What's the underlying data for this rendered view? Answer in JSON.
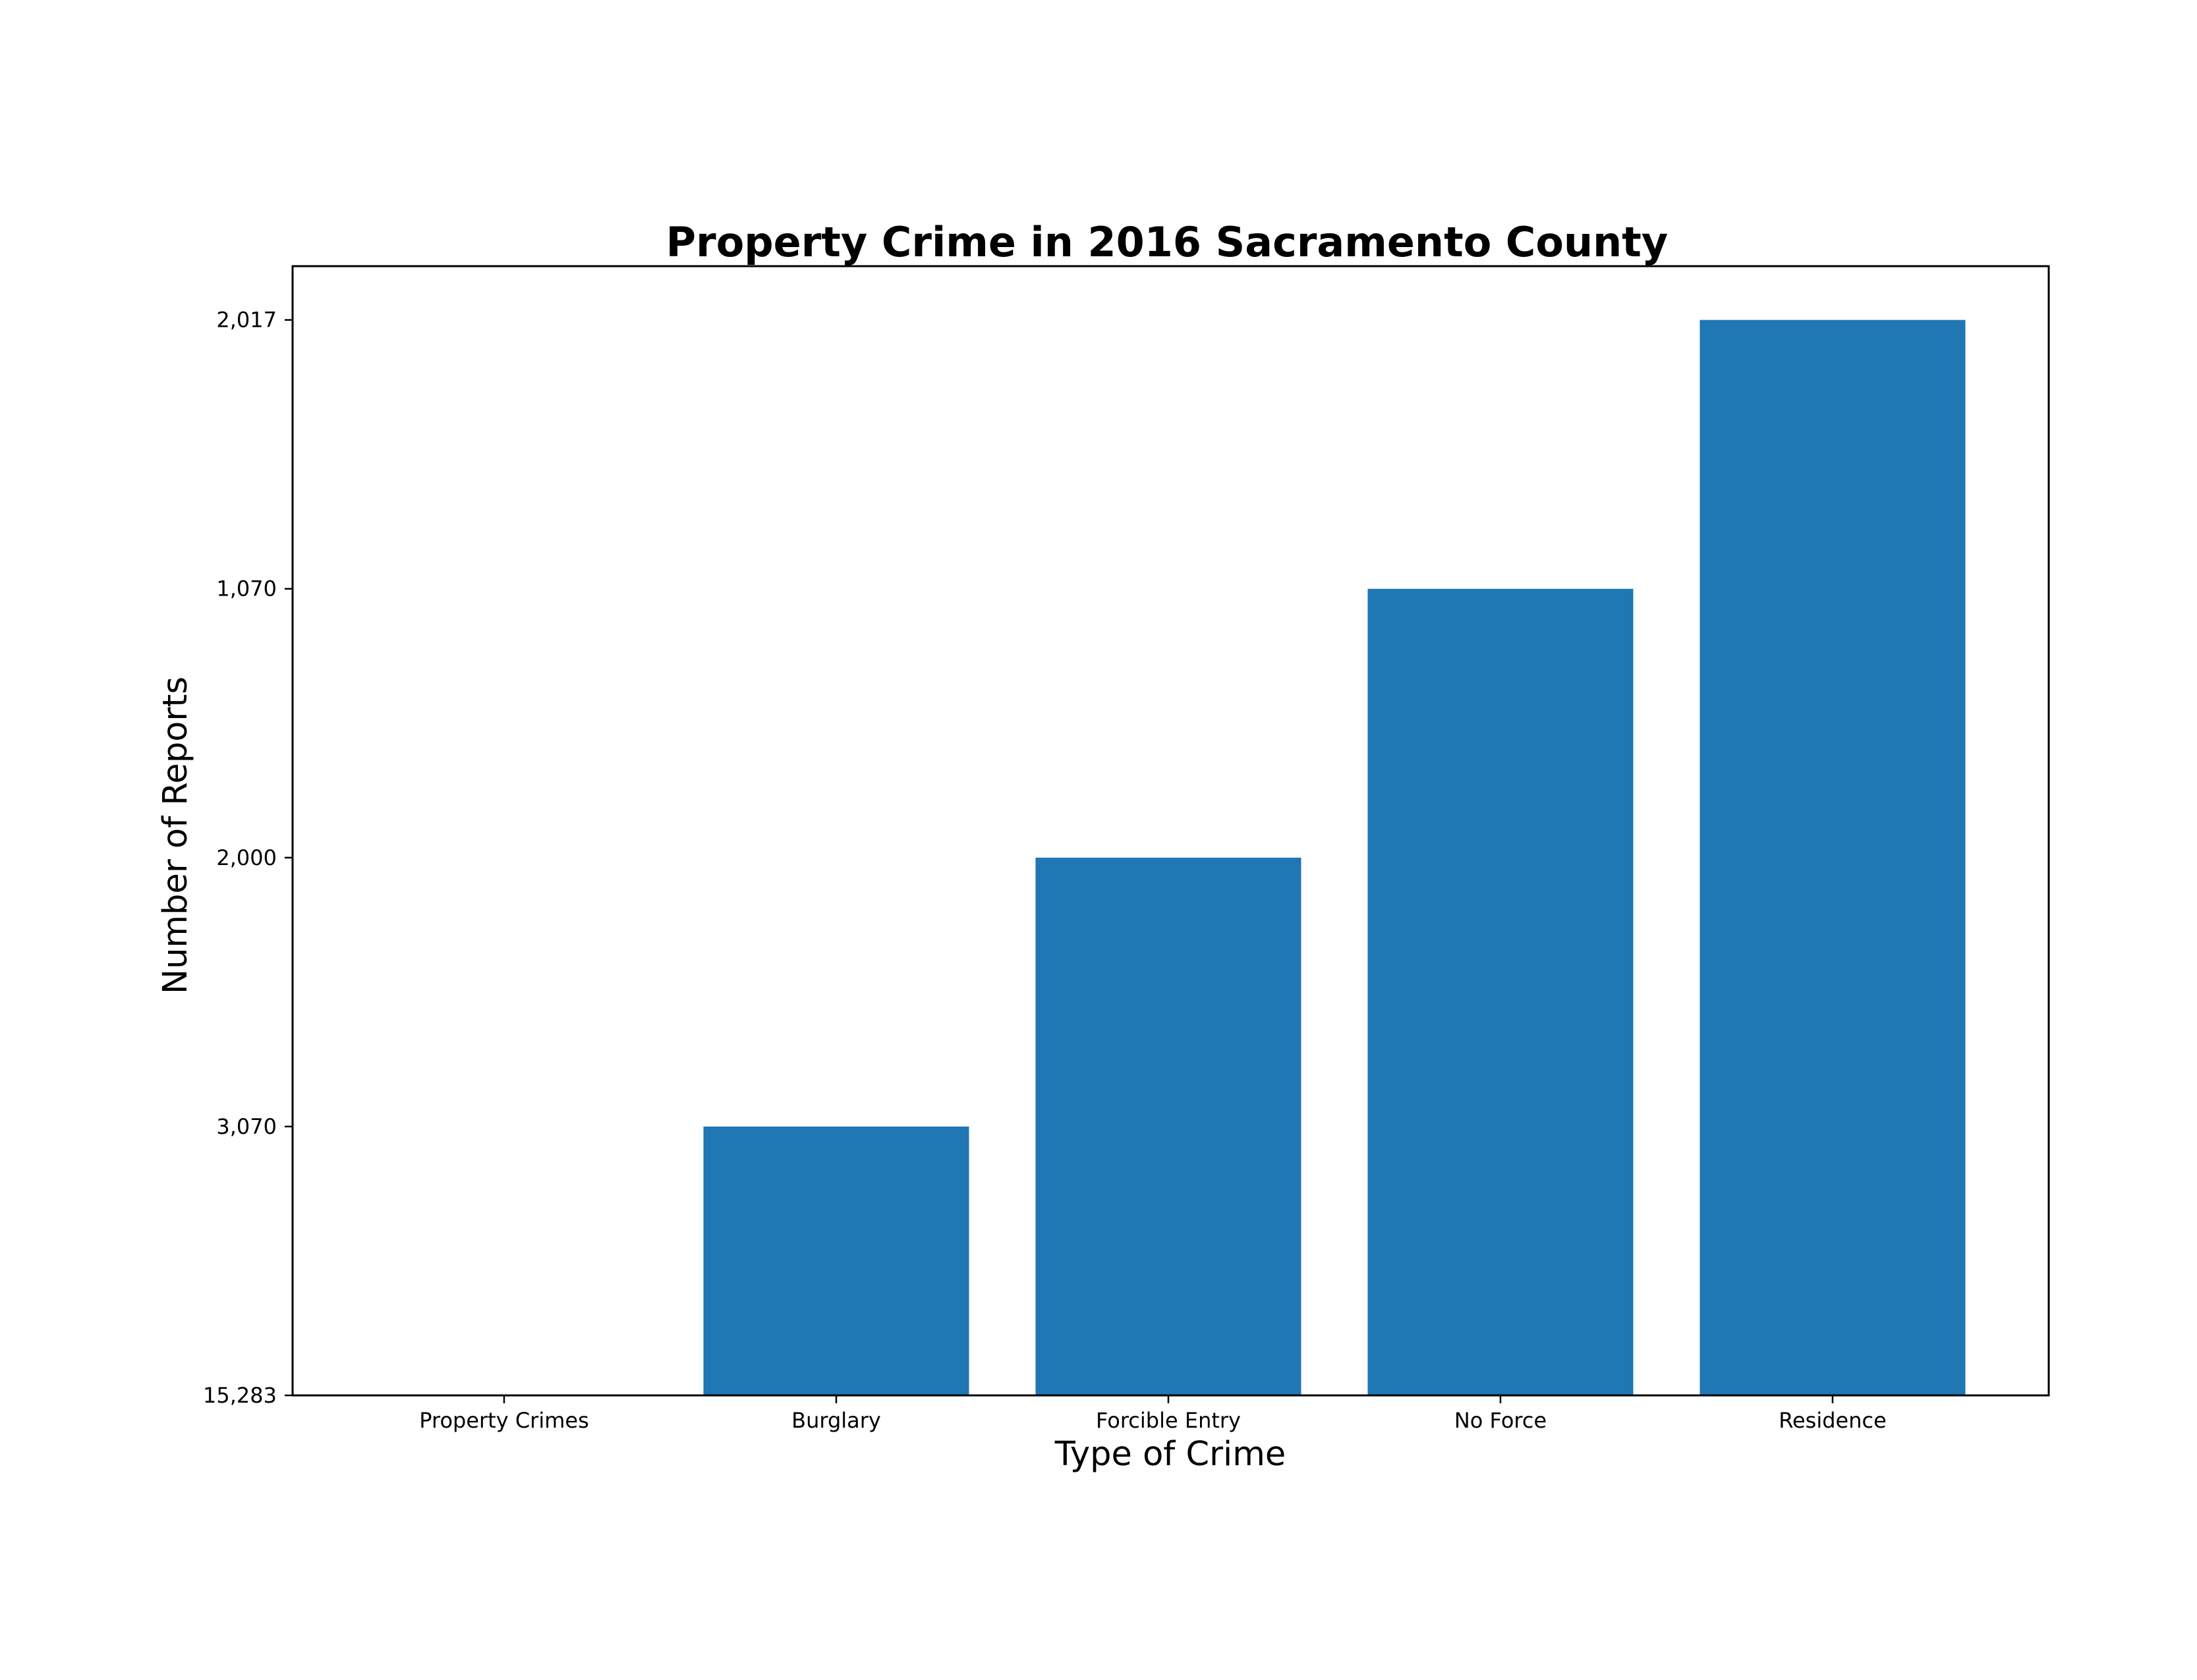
{
  "chart_data": {
    "type": "bar",
    "title": "Property Crime in 2016 Sacramento County",
    "xlabel": "Type of Crime",
    "ylabel": "Number of Reports",
    "categories": [
      "Property Crimes",
      "Burglary",
      "Forcible Entry",
      "No Force",
      "Residence"
    ],
    "values": [
      0,
      1,
      2,
      3,
      4
    ],
    "yticks": [
      {
        "value": 0,
        "label": "15,283"
      },
      {
        "value": 1,
        "label": "3,070"
      },
      {
        "value": 2,
        "label": "2,000"
      },
      {
        "value": 3,
        "label": "1,070"
      },
      {
        "value": 4,
        "label": "2,017"
      }
    ],
    "ylim": [
      0,
      4.2
    ],
    "grid": false,
    "bar_color": "#1f77b4"
  }
}
